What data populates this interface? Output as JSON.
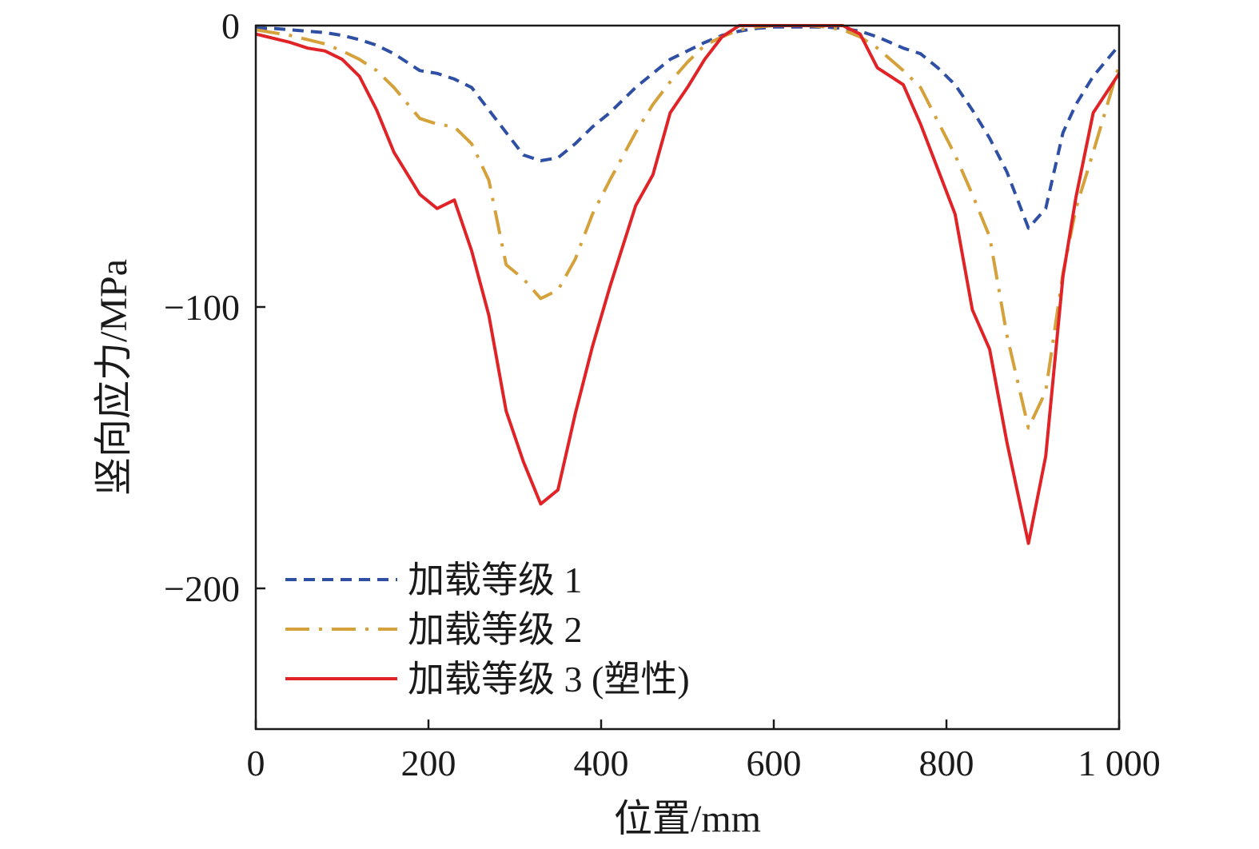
{
  "chart_data": {
    "type": "line",
    "title": "",
    "xlabel": "位置/mm",
    "ylabel": "竖向应力/MPa",
    "xlim": [
      0,
      1000
    ],
    "ylim": [
      -250,
      0
    ],
    "xticks": [
      0,
      200,
      400,
      600,
      800,
      1000
    ],
    "xtick_labels": [
      "0",
      "200",
      "400",
      "600",
      "800",
      "1 000"
    ],
    "yticks": [
      0,
      -100,
      -200
    ],
    "ytick_labels": [
      "0",
      "−100",
      "−200"
    ],
    "grid": false,
    "legend_position": "bottom-left",
    "series": [
      {
        "name": "加载等级 1",
        "color": "#2e4fa3",
        "style": "dashed",
        "x": [
          0,
          20,
          40,
          60,
          80,
          100,
          120,
          140,
          160,
          190,
          210,
          230,
          250,
          270,
          290,
          310,
          330,
          350,
          370,
          390,
          410,
          440,
          460,
          480,
          500,
          520,
          540,
          560,
          580,
          600,
          620,
          640,
          660,
          680,
          700,
          720,
          750,
          770,
          790,
          810,
          830,
          850,
          870,
          895,
          915,
          935,
          950,
          970,
          1000
        ],
        "y": [
          -1,
          -1,
          -1.5,
          -2,
          -2.5,
          -3.5,
          -5,
          -7,
          -10,
          -16,
          -17,
          -19,
          -22,
          -30,
          -38,
          -46,
          -48,
          -47,
          -42,
          -36,
          -31,
          -22,
          -17,
          -12,
          -9,
          -6,
          -3.5,
          -2,
          -1,
          -0.5,
          -0.5,
          -0.5,
          -0.5,
          -1,
          -2,
          -4,
          -8,
          -10,
          -15,
          -21,
          -30,
          -40,
          -52,
          -72,
          -65,
          -38,
          -28,
          -18,
          -7
        ]
      },
      {
        "name": "加载等级 2",
        "color": "#d4a13a",
        "style": "dashdot",
        "x": [
          0,
          20,
          40,
          60,
          80,
          100,
          120,
          140,
          160,
          190,
          210,
          230,
          250,
          270,
          290,
          310,
          330,
          350,
          370,
          390,
          410,
          440,
          460,
          480,
          500,
          520,
          540,
          560,
          580,
          600,
          620,
          640,
          660,
          680,
          700,
          720,
          750,
          770,
          790,
          810,
          830,
          850,
          870,
          895,
          915,
          935,
          950,
          970,
          1000
        ],
        "y": [
          -1.5,
          -2.5,
          -3.5,
          -5,
          -6.5,
          -9,
          -12,
          -16,
          -22,
          -33,
          -35,
          -36,
          -42,
          -55,
          -85,
          -90,
          -97,
          -94,
          -83,
          -67,
          -55,
          -38,
          -28,
          -20,
          -13,
          -7,
          -4,
          -1.5,
          -0.5,
          0,
          0,
          0,
          -0.5,
          -1.5,
          -4,
          -8,
          -16,
          -22,
          -34,
          -46,
          -60,
          -75,
          -110,
          -143,
          -130,
          -88,
          -65,
          -45,
          -14
        ]
      },
      {
        "name": "加载等级 3 (塑性)",
        "color": "#e02327",
        "style": "solid",
        "x": [
          0,
          20,
          40,
          60,
          80,
          100,
          120,
          140,
          160,
          190,
          210,
          230,
          250,
          270,
          290,
          310,
          330,
          350,
          370,
          390,
          410,
          440,
          460,
          480,
          500,
          520,
          540,
          560,
          580,
          600,
          620,
          640,
          660,
          680,
          700,
          720,
          750,
          770,
          790,
          810,
          830,
          850,
          870,
          895,
          915,
          935,
          950,
          970,
          1000
        ],
        "y": [
          -3,
          -4.5,
          -6,
          -8,
          -9,
          -12,
          -18,
          -30,
          -45,
          -60,
          -65,
          -62,
          -80,
          -103,
          -137,
          -155,
          -170,
          -165,
          -138,
          -114,
          -93,
          -64,
          -53,
          -31,
          -22,
          -12,
          -4,
          0,
          0,
          0,
          0,
          0,
          0,
          0,
          -3,
          -15,
          -21,
          -35,
          -51,
          -67,
          -101,
          -115,
          -148,
          -184,
          -153,
          -89,
          -61,
          -31,
          -17
        ]
      }
    ]
  }
}
